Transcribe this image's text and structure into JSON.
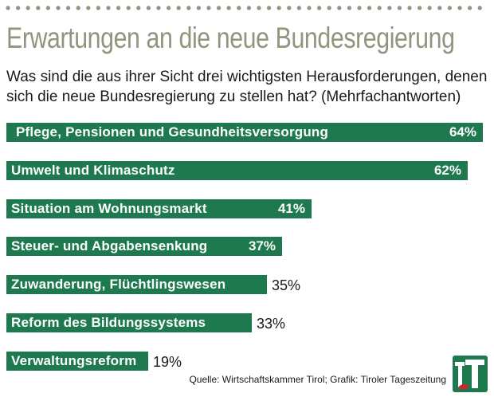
{
  "header": {
    "title": "Erwartungen an die neue Bundesregierung",
    "subtitle": "Was sind die aus ihrer Sicht drei wichtigsten Herausforderungen, denen sich die neue Bundesregierung zu stellen hat? (Mehrfachantworten)"
  },
  "footer": {
    "source": "Quelle: Wirtschaftskammer Tirol; Grafik: Tiroler Tageszeitung"
  },
  "colors": {
    "bar": "#1e7a4e",
    "title": "#93937e",
    "logo_green": "#1e7a4e",
    "logo_red": "#c8282d"
  },
  "chart_data": {
    "type": "bar",
    "orientation": "horizontal",
    "title": "Erwartungen an die neue Bundesregierung",
    "subtitle": "Was sind die aus ihrer Sicht drei wichtigsten Herausforderungen, denen sich die neue Bundesregierung zu stellen hat? (Mehrfachantworten)",
    "unit": "%",
    "xlim": [
      0,
      70
    ],
    "grid": false,
    "categories": [
      "Pflege, Pensionen und Gesundheitsversorgung",
      "Umwelt und Klimaschutz",
      "Situation am Wohnungsmarkt",
      "Steuer- und Abgabensenkung",
      "Zuwanderung, Flüchtlingswesen",
      "Reform des Bildungssystems",
      "Verwaltungsreform"
    ],
    "values": [
      64,
      62,
      41,
      37,
      35,
      33,
      19
    ],
    "value_labels": [
      "64%",
      "62%",
      "41%",
      "37%",
      "35%",
      "33%",
      "19%"
    ]
  }
}
